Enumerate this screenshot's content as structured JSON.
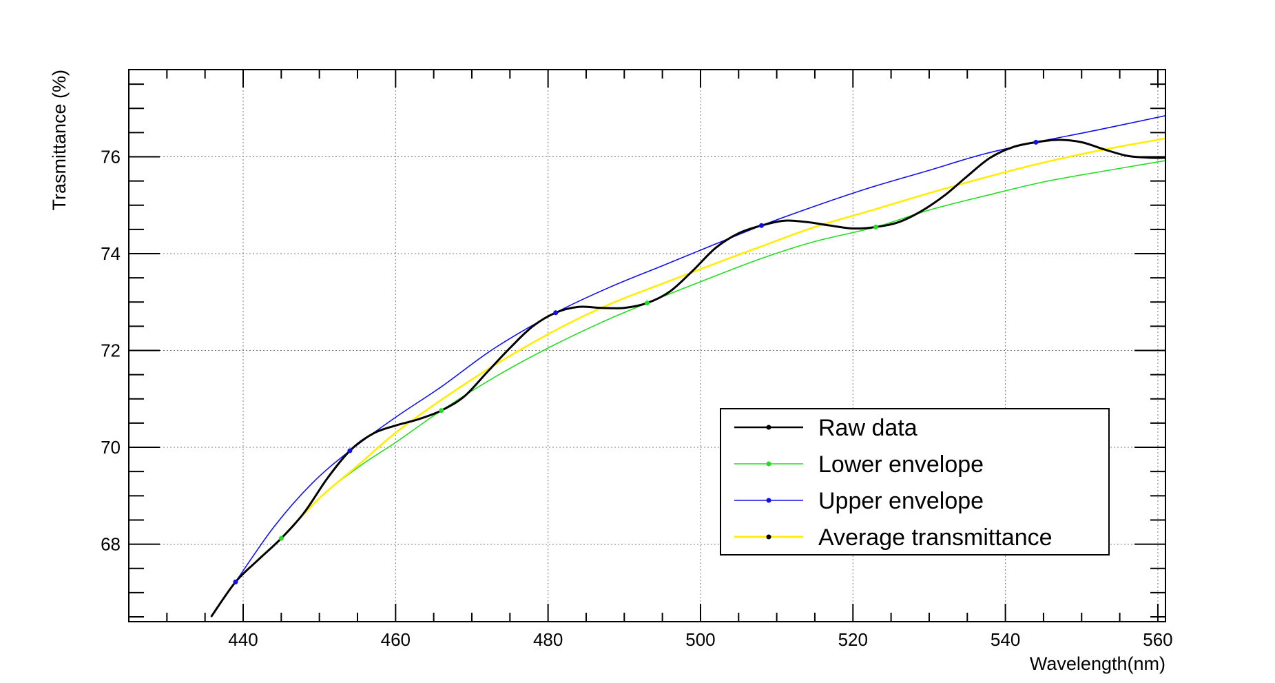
{
  "chart_data": {
    "type": "line",
    "title": "",
    "xlabel": "Wavelength(nm)",
    "ylabel": "Trasmittance (%)",
    "xlim": [
      425,
      561
    ],
    "ylim": [
      66.4,
      77.8
    ],
    "x_ticks": [
      440,
      460,
      480,
      500,
      520,
      540,
      560
    ],
    "y_ticks": [
      68,
      70,
      72,
      74,
      76
    ],
    "grid": true,
    "legend_position": "bottom-right",
    "series": [
      {
        "name": "Raw data",
        "color": "#000000",
        "marker_points": [],
        "x": [
          435.8,
          439,
          442,
          445,
          448,
          451,
          454,
          457,
          460,
          463,
          466,
          469,
          472,
          475,
          478,
          481,
          484,
          487,
          490,
          493,
          496,
          499,
          502,
          505,
          508,
          511,
          514,
          517,
          520,
          523,
          526,
          529,
          532,
          535,
          538,
          541,
          544,
          547,
          550,
          553,
          556,
          559,
          561
        ],
        "y": [
          66.5,
          67.22,
          67.68,
          68.12,
          68.65,
          69.35,
          69.93,
          70.28,
          70.45,
          70.58,
          70.76,
          71.05,
          71.55,
          72.05,
          72.5,
          72.78,
          72.9,
          72.88,
          72.88,
          72.98,
          73.22,
          73.65,
          74.12,
          74.42,
          74.58,
          74.68,
          74.65,
          74.58,
          74.52,
          74.55,
          74.65,
          74.88,
          75.2,
          75.6,
          75.98,
          76.2,
          76.3,
          76.35,
          76.3,
          76.15,
          76.02,
          75.98,
          75.98
        ]
      },
      {
        "name": "Lower envelope",
        "color": "#22dd22",
        "marker_x": [
          445,
          466,
          493,
          523
        ],
        "marker_y": [
          68.12,
          70.76,
          72.98,
          74.55
        ],
        "x": [
          445,
          450,
          455,
          460,
          466,
          473,
          480,
          487,
          493,
          500,
          508,
          515,
          523,
          530,
          538,
          545,
          552,
          561
        ],
        "y": [
          68.12,
          68.95,
          69.58,
          70.1,
          70.76,
          71.45,
          72.05,
          72.58,
          72.98,
          73.42,
          73.9,
          74.25,
          74.55,
          74.9,
          75.22,
          75.48,
          75.68,
          75.92
        ]
      },
      {
        "name": "Upper envelope",
        "color": "#1010ee",
        "marker_x": [
          439,
          454,
          481,
          508,
          544
        ],
        "marker_y": [
          67.22,
          69.93,
          72.78,
          74.58,
          76.3
        ],
        "x": [
          439,
          444,
          449,
          454,
          460,
          466,
          473,
          481,
          488,
          495,
          502,
          508,
          515,
          522,
          530,
          537,
          544,
          552,
          561
        ],
        "y": [
          67.22,
          68.35,
          69.25,
          69.93,
          70.62,
          71.25,
          72.05,
          72.78,
          73.3,
          73.75,
          74.2,
          74.58,
          74.98,
          75.35,
          75.72,
          76.05,
          76.3,
          76.55,
          76.85
        ]
      },
      {
        "name": "Average transmittance",
        "color": "#ffee00",
        "marker_points": [],
        "x": [
          445,
          450,
          455,
          460,
          466,
          473,
          481,
          488,
          495,
          502,
          508,
          515,
          523,
          530,
          538,
          545,
          552,
          561
        ],
        "y": [
          68.12,
          68.95,
          69.62,
          70.3,
          70.98,
          71.7,
          72.42,
          72.95,
          73.38,
          73.8,
          74.15,
          74.55,
          74.92,
          75.25,
          75.6,
          75.88,
          76.12,
          76.38
        ]
      }
    ],
    "legend": {
      "entries": [
        "Raw data",
        "Lower envelope",
        "Upper envelope",
        "Average transmittance"
      ],
      "marker_colors": [
        "#000000",
        "#22dd22",
        "#1010ee",
        "#000000"
      ],
      "line_colors": [
        "#000000",
        "#22dd22",
        "#1010ee",
        "#ffee00"
      ]
    }
  }
}
